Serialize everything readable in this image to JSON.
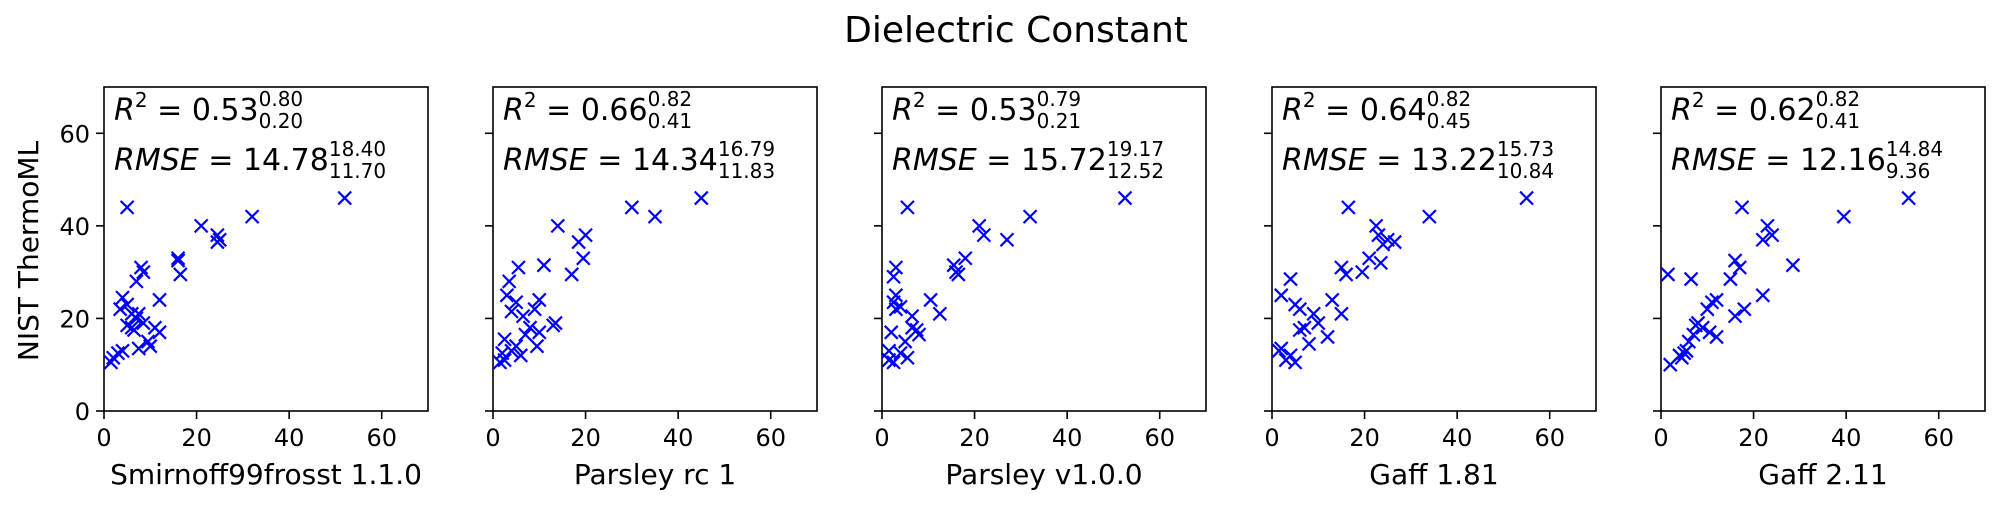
{
  "colors": {
    "marker": "#0000ff"
  },
  "chart_data": {
    "type": "scatter",
    "title": "Dielectric Constant",
    "ylabel": "NIST ThermoML",
    "xlim": [
      0,
      70
    ],
    "ylim": [
      0,
      70
    ],
    "xticks": [
      "0",
      "20",
      "40",
      "60"
    ],
    "yticks": [
      "0",
      "20",
      "40",
      "60"
    ],
    "marker": "x",
    "panels": [
      {
        "xlabel": "Smirnoff99frosst 1.1.0",
        "r2": "0.53",
        "r2_hi": "0.80",
        "r2_lo": "0.20",
        "rmse": "14.78",
        "rmse_hi": "18.40",
        "rmse_lo": "11.70",
        "x": [
          52,
          5,
          21,
          24.5,
          25,
          24.5,
          16,
          16,
          16.5,
          32,
          8,
          8.5,
          7,
          12,
          4,
          5,
          3.5,
          6,
          7.5,
          7,
          8.5,
          5,
          6,
          6.5,
          11,
          12,
          9.5,
          7.5,
          4,
          3,
          2,
          1.5,
          10
        ],
        "y": [
          46,
          44,
          40,
          38,
          37,
          36.5,
          33,
          32.5,
          29.5,
          42,
          31,
          30,
          28,
          24,
          24.5,
          23,
          22,
          21,
          21,
          20,
          19,
          18.5,
          18,
          17.5,
          18,
          17,
          15,
          13.5,
          13,
          12.5,
          11.5,
          10.5,
          14
        ]
      },
      {
        "xlabel": "Parsley rc 1",
        "r2": "0.66",
        "r2_hi": "0.82",
        "r2_lo": "0.41",
        "rmse": "14.34",
        "rmse_hi": "16.79",
        "rmse_lo": "11.83",
        "x": [
          45,
          30,
          35,
          14,
          20,
          18.5,
          19.5,
          17,
          11,
          13,
          5.5,
          3.5,
          3,
          10,
          9,
          5,
          4,
          6.5,
          8,
          10,
          7,
          9.5,
          2.5,
          5,
          4,
          2,
          6,
          2.5,
          1.5,
          13.5
        ],
        "y": [
          46,
          44,
          42,
          40,
          38,
          36.5,
          33,
          29.5,
          31.5,
          18.5,
          31,
          28,
          25,
          24,
          22,
          23.5,
          21.5,
          20.5,
          18,
          17,
          16.5,
          14,
          15.5,
          14,
          13,
          12.5,
          12,
          11,
          10.5,
          19
        ]
      },
      {
        "xlabel": "Parsley v1.0.0",
        "r2": "0.53",
        "r2_hi": "0.79",
        "r2_lo": "0.21",
        "rmse": "15.72",
        "rmse_hi": "19.17",
        "rmse_lo": "12.52",
        "x": [
          52.5,
          32,
          27,
          5.5,
          21,
          22,
          18,
          15.5,
          16,
          16.5,
          10.5,
          12.5,
          3,
          2.5,
          3,
          2.5,
          4,
          3,
          6.5,
          6.5,
          7.5,
          8,
          2,
          1.5,
          5,
          4,
          5.5,
          1.5,
          2.5
        ],
        "y": [
          46,
          42,
          37,
          44,
          40,
          38,
          33,
          31.5,
          30,
          29.5,
          24,
          21,
          31,
          29,
          25,
          23.5,
          22.5,
          22,
          20.5,
          18,
          17.5,
          16.5,
          17,
          13,
          15,
          12.5,
          11.5,
          11,
          10.5
        ]
      },
      {
        "xlabel": "Gaff 1.81",
        "r2": "0.64",
        "r2_hi": "0.82",
        "r2_lo": "0.45",
        "rmse": "13.22",
        "rmse_hi": "15.73",
        "rmse_lo": "10.84",
        "x": [
          55,
          34,
          16.5,
          22.5,
          23,
          24,
          25,
          26.5,
          15,
          19.5,
          21,
          23.5,
          16,
          13,
          15,
          4,
          2,
          5,
          6,
          9,
          10,
          7,
          6,
          2,
          1.5,
          4,
          3,
          5,
          8,
          12
        ],
        "y": [
          46,
          42,
          44,
          40,
          38,
          36,
          37,
          36.5,
          31,
          30,
          33,
          32,
          29.5,
          24,
          21,
          28.5,
          25,
          23,
          22,
          21,
          19,
          18,
          17.5,
          13.5,
          13,
          12,
          11,
          10.5,
          14.5,
          16
        ]
      },
      {
        "xlabel": "Gaff 2.11",
        "r2": "0.62",
        "r2_hi": "0.82",
        "r2_lo": "0.41",
        "rmse": "12.16",
        "rmse_hi": "14.84",
        "rmse_lo": "9.36",
        "x": [
          53.5,
          39.5,
          17.5,
          23,
          24,
          22,
          28.5,
          16,
          17,
          15,
          22,
          12,
          11,
          16,
          18,
          1.5,
          6.5,
          10,
          8,
          9,
          7.5,
          7,
          10.5,
          6,
          5.5,
          5,
          4,
          4.5,
          2,
          12
        ],
        "y": [
          46,
          42,
          44,
          40,
          38,
          37,
          31.5,
          32.5,
          31,
          28.5,
          25,
          24,
          23.5,
          20.5,
          22,
          29.5,
          28.5,
          22,
          19,
          18,
          18.5,
          16.5,
          17,
          15,
          13,
          12.5,
          12,
          11.5,
          10,
          16
        ]
      }
    ]
  }
}
